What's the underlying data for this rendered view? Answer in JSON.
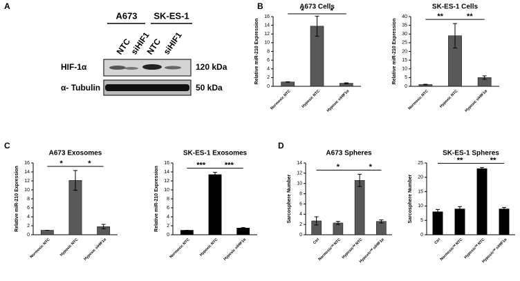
{
  "panel_labels": [
    "A",
    "B",
    "C",
    "D"
  ],
  "panel_a": {
    "cell_lines": [
      "A673",
      "SK-ES-1"
    ],
    "lanes": [
      "NTC",
      "siHIF1",
      "NTC",
      "siHIF1"
    ],
    "rows": [
      {
        "protein": "HIF-1α",
        "size": "120 kDa"
      },
      {
        "protein": "α- Tubulin",
        "size": "50 kDa"
      }
    ]
  },
  "chart_data": [
    {
      "type": "bar",
      "title": "A673 Cells",
      "y_label": "Relative miR-210 Expression",
      "categories": [
        "Normoxic NTC",
        "Hypoxic NTC",
        "Hypoxic siHIF1α"
      ],
      "values": [
        1,
        13.8,
        0.7
      ],
      "errors": [
        0.05,
        2.3,
        0.1
      ],
      "color": "#595959",
      "ylim": [
        0,
        16
      ],
      "yticks": [
        0,
        2,
        4,
        6,
        8,
        10,
        12,
        14,
        16
      ],
      "annotations": [
        {
          "text": "*",
          "from": 0,
          "to": 1
        },
        {
          "text": "*",
          "from": 1,
          "to": 2
        }
      ]
    },
    {
      "type": "bar",
      "title": "SK-ES-1 Cells",
      "y_label": "Relative miR-210 Expression",
      "categories": [
        "Normoxic NTC",
        "Hypoxic NTC",
        "Hypoxic siHIF1α"
      ],
      "values": [
        1,
        29,
        5
      ],
      "errors": [
        0.2,
        7,
        1
      ],
      "color": "#595959",
      "ylim": [
        0,
        40
      ],
      "yticks": [
        0,
        5,
        10,
        15,
        20,
        25,
        30,
        35,
        40
      ],
      "annotations": [
        {
          "text": "**",
          "from": 0,
          "to": 1
        },
        {
          "text": "**",
          "from": 1,
          "to": 2
        }
      ]
    },
    {
      "type": "bar",
      "title": "A673 Exosomes",
      "y_label": "Relative miR-210 Expression",
      "categories": [
        "Normoxic NTC",
        "Hypoxic NTC",
        "Hypoxic siHIF1α"
      ],
      "values": [
        1,
        12.1,
        1.8
      ],
      "errors": [
        0,
        2.2,
        0.5
      ],
      "color": "#595959",
      "ylim": [
        0,
        16
      ],
      "yticks": [
        0,
        2,
        4,
        6,
        8,
        10,
        12,
        14,
        16
      ],
      "annotations": [
        {
          "text": "*",
          "from": 0,
          "to": 1
        },
        {
          "text": "*",
          "from": 1,
          "to": 2
        }
      ]
    },
    {
      "type": "bar",
      "title": "SK-ES-1 Exosomes",
      "y_label": "Relative miR-210 Expression",
      "categories": [
        "Normoxic NTC",
        "Hypoxic NTC",
        "Hypoxic siHIF1α"
      ],
      "values": [
        1,
        13.4,
        1.5
      ],
      "errors": [
        0,
        0.5,
        0.1
      ],
      "color": "#000000",
      "ylim": [
        0,
        16
      ],
      "yticks": [
        0,
        2,
        4,
        6,
        8,
        10,
        12,
        14,
        16
      ],
      "annotations": [
        {
          "text": "***",
          "from": 0,
          "to": 1
        },
        {
          "text": "***",
          "from": 1,
          "to": 2
        }
      ]
    },
    {
      "type": "bar",
      "title": "A673 Spheres",
      "y_label": "Sarcosphere Number",
      "categories": [
        "Ctrl",
        "Normoxicᶜᴹ NTC",
        "Hypoxicᶜᴹ NTC",
        "Hypoxicᶜᴹ siHIF1α"
      ],
      "values": [
        2.7,
        2.3,
        10.6,
        2.6
      ],
      "errors": [
        0.8,
        0.3,
        1.2,
        0.3
      ],
      "color": "#595959",
      "ylim": [
        0,
        14
      ],
      "yticks": [
        0,
        2,
        4,
        6,
        8,
        10,
        12,
        14
      ],
      "annotations": [
        {
          "text": "*",
          "from": 0,
          "to": 2
        },
        {
          "text": "*",
          "from": 2,
          "to": 3
        }
      ]
    },
    {
      "type": "bar",
      "title": "SK-ES-1 Spheres",
      "y_label": "Sarcosphere Number",
      "categories": [
        "Ctrl",
        "Normoxicᶜᴹ NTC",
        "Hypoxicᶜᴹ NTC",
        "Hypoxicᶜᴹ siHIF1α"
      ],
      "values": [
        8,
        9,
        23,
        9
      ],
      "errors": [
        0.8,
        0.8,
        0.4,
        0.5
      ],
      "color": "#000000",
      "ylim": [
        0,
        25
      ],
      "yticks": [
        0,
        5,
        10,
        15,
        20,
        25
      ],
      "annotations": [
        {
          "text": "**",
          "from": 0,
          "to": 2
        },
        {
          "text": "**",
          "from": 2,
          "to": 3
        }
      ]
    }
  ]
}
